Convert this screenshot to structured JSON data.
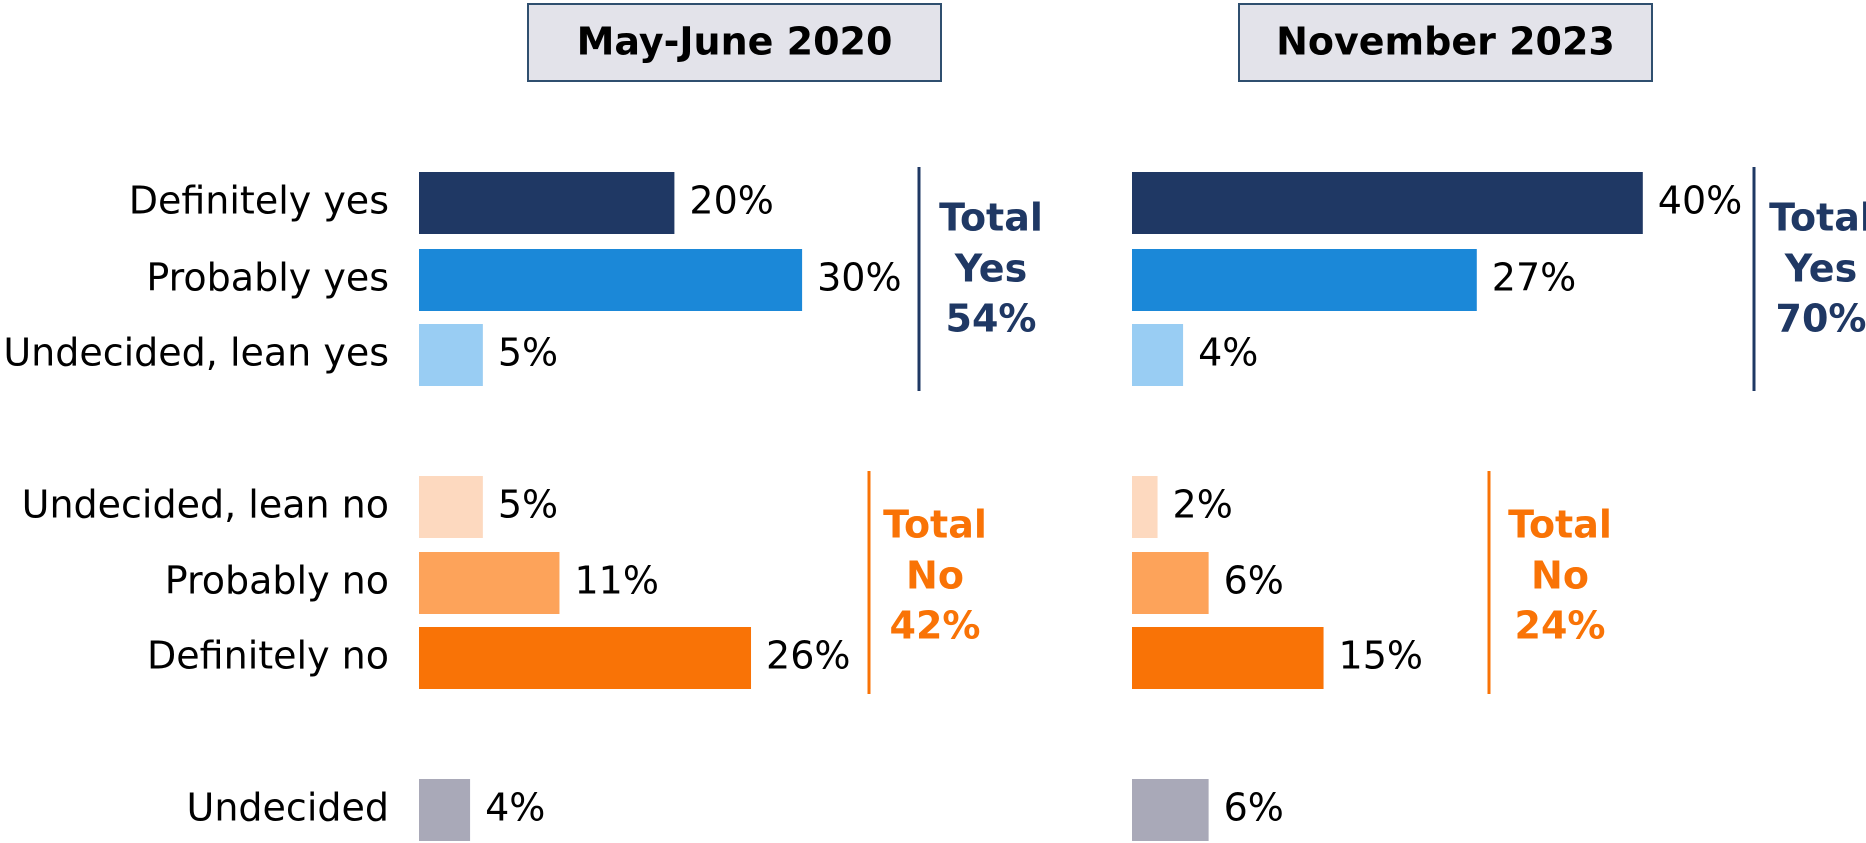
{
  "chart_data": [
    {
      "type": "bar",
      "orientation": "horizontal",
      "title": "May-June 2020",
      "categories": [
        "Definitely yes",
        "Probably yes",
        "Undecided, lean yes",
        "Undecided, lean no",
        "Probably no",
        "Definitely no",
        "Undecided"
      ],
      "values": [
        20,
        30,
        5,
        5,
        11,
        26,
        4
      ],
      "value_labels": [
        "20%",
        "30%",
        "5%",
        "5%",
        "11%",
        "26%",
        "4%"
      ],
      "colors": [
        "#1f3864",
        "#1b88d8",
        "#99cdf3",
        "#fdd9bf",
        "#fda35a",
        "#f97306",
        "#a9a9b8"
      ],
      "annotations": [
        {
          "lines": [
            "Total",
            "Yes",
            "54%"
          ],
          "color": "#1f3864"
        },
        {
          "lines": [
            "Total",
            "No",
            "42%"
          ],
          "color": "#f97306"
        }
      ]
    },
    {
      "type": "bar",
      "orientation": "horizontal",
      "title": "November 2023",
      "values": [
        40,
        27,
        4,
        2,
        6,
        15,
        6
      ],
      "value_labels": [
        "40%",
        "27%",
        "4%",
        "2%",
        "6%",
        "15%",
        "6%"
      ],
      "colors": [
        "#1f3864",
        "#1b88d8",
        "#99cdf3",
        "#fdd9bf",
        "#fda35a",
        "#f97306",
        "#a9a9b8"
      ],
      "annotations": [
        {
          "lines": [
            "Total",
            "Yes",
            "70%"
          ],
          "color": "#1f3864"
        },
        {
          "lines": [
            "Total",
            "No",
            "24%"
          ],
          "color": "#f97306"
        }
      ]
    }
  ]
}
